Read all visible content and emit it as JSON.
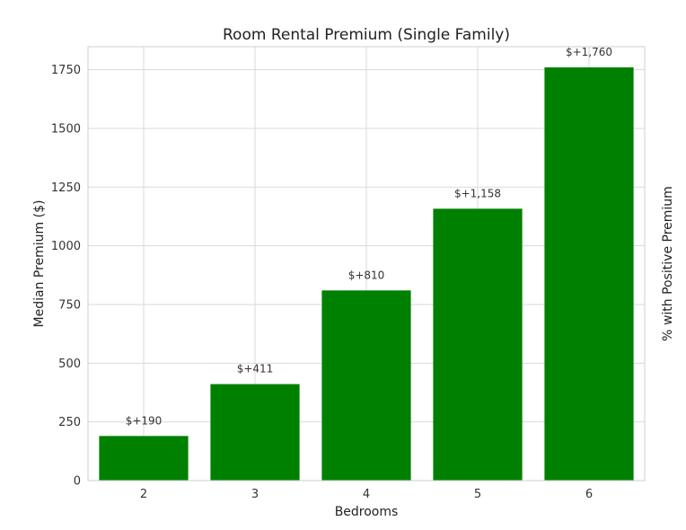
{
  "chart_data": {
    "type": "bar",
    "title": "Room Rental Premium (Single Family)",
    "xlabel": "Bedrooms",
    "ylabel": "Median Premium ($)",
    "y2label": "% with Positive Premium",
    "categories": [
      "2",
      "3",
      "4",
      "5",
      "6"
    ],
    "values": [
      190,
      411,
      810,
      1158,
      1760
    ],
    "data_labels": [
      "$+190",
      "$+411",
      "$+810",
      "$+1,158",
      "$+1,760"
    ],
    "yticks": [
      0,
      250,
      500,
      750,
      1000,
      1250,
      1500,
      1750
    ],
    "ytick_labels": [
      "0",
      "250",
      "500",
      "750",
      "1000",
      "1250",
      "1500",
      "1750"
    ],
    "ylim": [
      0,
      1848
    ],
    "bar_color": "#008000",
    "grid": true,
    "legend": "none"
  }
}
